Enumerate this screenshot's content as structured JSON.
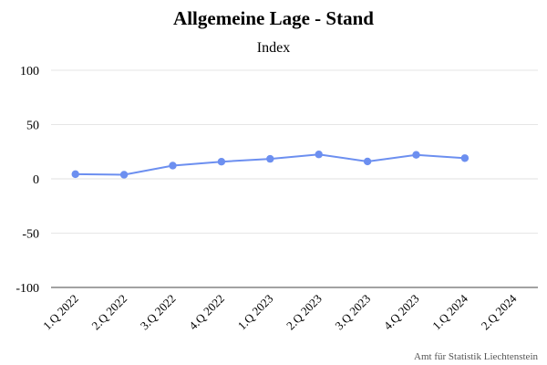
{
  "chart_data": {
    "type": "line",
    "title": "Allgemeine Lage - Stand",
    "subtitle": "Index",
    "categories": [
      "1.Q 2022",
      "2.Q 2022",
      "3.Q 2022",
      "4.Q 2022",
      "1.Q 2023",
      "2.Q 2023",
      "3.Q 2023",
      "4.Q 2023",
      "1.Q 2024",
      "2.Q 2024"
    ],
    "series": [
      {
        "values": [
          4.3,
          3.8,
          12.2,
          15.8,
          18.4,
          22.5,
          16.0,
          22.1,
          19.1,
          null
        ],
        "color": "#6c8ff0"
      }
    ],
    "ylim": [
      -100,
      100
    ],
    "yticks": [
      100,
      50,
      0,
      -50,
      -100
    ],
    "grid": true,
    "legend": "none"
  },
  "credits": "Amt für Statistik Liechtenstein"
}
